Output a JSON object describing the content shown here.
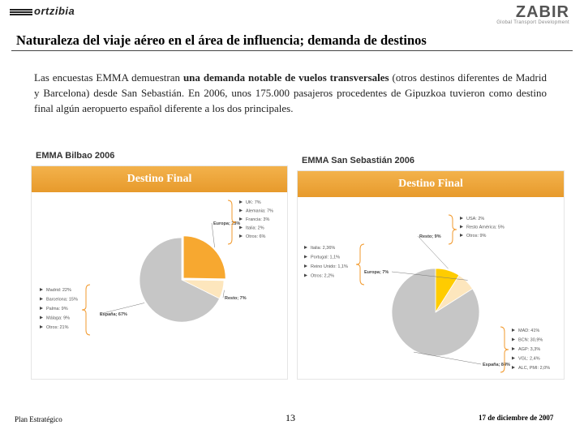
{
  "header": {
    "logo_left": "ortzibia",
    "logo_right": "ZABIR",
    "logo_tagline": "Global Transport Development"
  },
  "title": "Naturaleza del viaje aéreo en el área de influencia; demanda de destinos",
  "intro": {
    "pre": "Las encuestas EMMA demuestran ",
    "bold": "una demanda notable de vuelos transversales",
    "post": " (otros destinos diferentes de Madrid y Barcelona) desde San Sebastián. En 2006, unos 175.000 pasajeros procedentes de Gipuzkoa tuvieron como destino final algún aeropuerto español diferente a los dos principales."
  },
  "chart_data": [
    {
      "type": "pie",
      "title": "EMMA Bilbao 2006",
      "subtitle": "Destino Final",
      "slices": [
        {
          "label": "Europa; 25%",
          "value": 25,
          "color": "#f7a830"
        },
        {
          "label": "Resto; 7%",
          "value": 7,
          "color": "#fde6bd"
        },
        {
          "label": "España; 67%",
          "value": 67,
          "color": "#c6c6c6"
        }
      ],
      "breakdowns": [
        {
          "of": "Europa",
          "items": [
            "UK: 7%",
            "Alemania: 7%",
            "Francia: 3%",
            "Italia: 2%",
            "Otros: 6%"
          ]
        },
        {
          "of": "España",
          "items": [
            "Madrid: 22%",
            "Barcelona: 15%",
            "Palma: 9%",
            "Málaga: 9%",
            "Otros: 21%"
          ]
        }
      ]
    },
    {
      "type": "pie",
      "title": "EMMA San Sebastián 2006",
      "subtitle": "Destino Final",
      "slices": [
        {
          "label": "Resto; 9%",
          "value": 9,
          "color": "#ffcc00"
        },
        {
          "label": "Europa; 7%",
          "value": 7,
          "color": "#fde6bd"
        },
        {
          "label": "España; 84%",
          "value": 84,
          "color": "#c6c6c6"
        }
      ],
      "breakdowns": [
        {
          "of": "Resto",
          "items": [
            "USA: 2%",
            "Resto América: 5%",
            "Otros: 9%"
          ]
        },
        {
          "of": "Europa",
          "items": [
            "Italia: 2,36%",
            "Portugal: 1,1%",
            "Reino Unido: 1,1%",
            "Otros: 2,2%"
          ]
        },
        {
          "of": "España",
          "items": [
            "MAD: 41%",
            "BCN: 30,9%",
            "AGP: 3,3%",
            "VGL: 2,4%",
            "ALC, PMI: 2,0%"
          ]
        }
      ]
    }
  ],
  "footer": {
    "left": "Plan Estratégico",
    "page": "13",
    "date": "17 de diciembre de 2007"
  }
}
